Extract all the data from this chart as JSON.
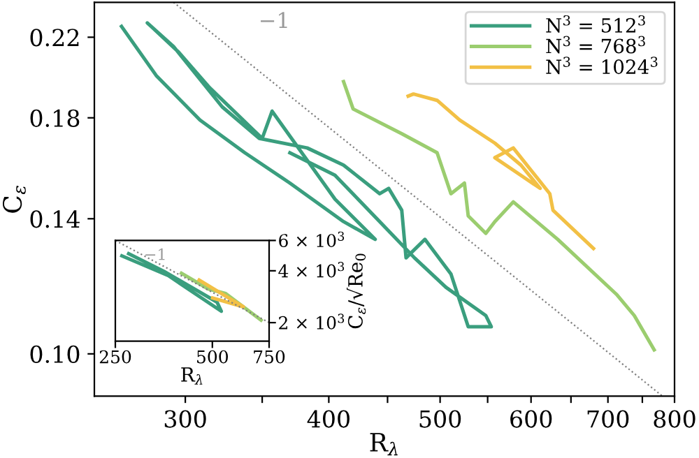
{
  "chart_data": [
    {
      "type": "line",
      "xlabel": "R$_{λ}$",
      "ylabel": "C$_{ε}$",
      "log": "xy",
      "xlim": [
        250,
        800
      ],
      "xticks": [
        300,
        {
          "value": 350,
          "label": null
        },
        400,
        {
          "value": 450,
          "label": null
        },
        500,
        {
          "value": 550,
          "label": null
        },
        600,
        {
          "value": 650,
          "label": null
        },
        700,
        {
          "value": 750,
          "label": null
        },
        800
      ],
      "ylim": [
        0.09,
        0.24
      ],
      "yticks": [
        {
          "value": 0.1,
          "label": "0.10"
        },
        0.14,
        0.18,
        0.22
      ],
      "legend": "top right",
      "annotations": [
        "−1"
      ],
      "series": [
        {
          "name": "N$^{3}$ = 512$^{3}$",
          "color": "#3a9e7e",
          "x": [
            264,
            283,
            309,
            338,
            370,
            412,
            439,
            405,
            357,
            350,
            315,
            296,
            278,
            293,
            323,
            348,
            383,
            412,
            443,
            451,
            463,
            467,
            485,
            511,
            529,
            554,
            548,
            506,
            475,
            443,
            405,
            370
          ],
          "values": [
            0.226,
            0.2,
            0.179,
            0.165,
            0.153,
            0.139,
            0.133,
            0.147,
            0.183,
            0.171,
            0.194,
            0.212,
            0.228,
            0.215,
            0.185,
            0.171,
            0.167,
            0.16,
            0.149,
            0.151,
            0.143,
            0.127,
            0.133,
            0.122,
            0.107,
            0.107,
            0.11,
            0.118,
            0.127,
            0.139,
            0.156,
            0.165
          ]
        },
        {
          "name": "N$^{3}$ = 768$^{3}$",
          "color": "#9bcd6f",
          "x": [
            412,
            420,
            463,
            497,
            511,
            525,
            529,
            548,
            558,
            579,
            633,
            712,
            738,
            768
          ],
          "values": [
            0.197,
            0.184,
            0.173,
            0.165,
            0.149,
            0.153,
            0.141,
            0.135,
            0.139,
            0.146,
            0.133,
            0.116,
            0.11,
            0.101
          ]
        },
        {
          "name": "N$^{3}$ = 1024$^{3}$",
          "color": "#f2c045",
          "x": [
            469,
            474,
            497,
            520,
            558,
            588,
            611,
            558,
            579,
            623,
            627,
            680
          ],
          "values": [
            0.19,
            0.191,
            0.188,
            0.179,
            0.169,
            0.16,
            0.151,
            0.163,
            0.167,
            0.149,
            0.143,
            0.13
          ]
        },
        {
          "color": "#808080",
          "line_style": "dotted",
          "x": [
            293,
            780
          ],
          "values": [
            0.24,
            0.0901
          ]
        }
      ]
    },
    {
      "type": "line",
      "xlabel": "R$_{λ}$",
      "ylabel": "C$_{ε}$/√Re$_{0}$",
      "log": "xy",
      "xlim": [
        250,
        750
      ],
      "xticks": [
        250,
        500,
        750
      ],
      "ylim": [
        1560,
        6000
      ],
      "yticks": [
        {
          "value": 2000,
          "label": "2 × 10$^{3}$"
        },
        {
          "value": 4000,
          "label": "4 × 10$^{3}$"
        },
        {
          "value": 6000,
          "label": "6 × 10$^{3}$"
        }
      ],
      "annotations": [
        "−1"
      ],
      "series": [
        {
          "color": "#3a9e7e",
          "x": [
            262,
            365,
            533,
            517,
            354,
            275
          ],
          "values": [
            4880,
            3750,
            2330,
            2630,
            3970,
            5030
          ]
        },
        {
          "color": "#9bcd6f",
          "x": [
            401,
            485,
            550,
            708
          ],
          "values": [
            3870,
            3140,
            2950,
            2070
          ]
        },
        {
          "color": "#f2c045",
          "x": [
            455,
            533,
            624,
            501
          ],
          "values": [
            3530,
            2950,
            2470,
            2780
          ]
        },
        {
          "color": "#808080",
          "line_style": "dotted",
          "x": [
            250,
            750
          ],
          "values": [
            6000,
            2000
          ]
        }
      ]
    }
  ]
}
